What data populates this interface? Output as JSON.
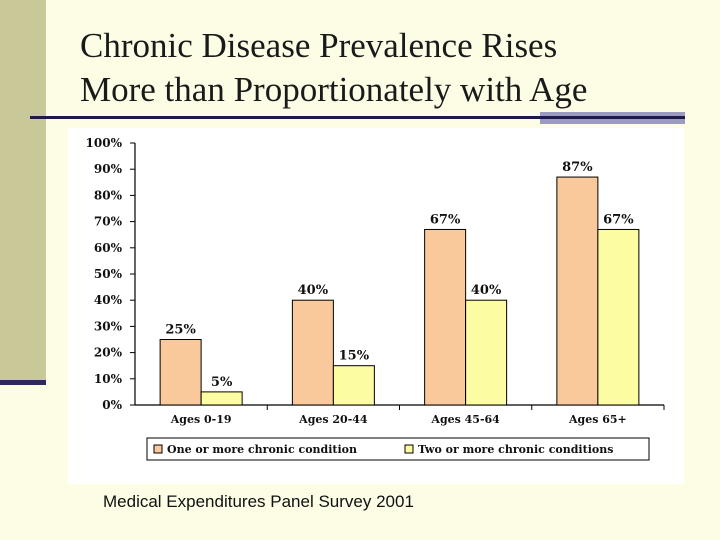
{
  "slide": {
    "title_line1": "Chronic Disease Prevalence Rises",
    "title_line2": "More than Proportionately with Age",
    "source": "Medical Expenditures Panel Survey 2001"
  },
  "chart_data": {
    "type": "bar",
    "categories": [
      "Ages 0-19",
      "Ages 20-44",
      "Ages 45-64",
      "Ages 65+"
    ],
    "series": [
      {
        "name": "One or more chronic condition",
        "values": [
          25,
          40,
          67,
          87
        ],
        "color": "#f9c99b",
        "labels": [
          "25%",
          "40%",
          "67%",
          "87%"
        ]
      },
      {
        "name": "Two or more chronic conditions",
        "values": [
          5,
          15,
          40,
          67
        ],
        "color": "#fcfca2",
        "labels": [
          "5%",
          "15%",
          "40%",
          "67%"
        ]
      }
    ],
    "ylim": [
      0,
      100
    ],
    "yticks": [
      0,
      10,
      20,
      30,
      40,
      50,
      60,
      70,
      80,
      90,
      100
    ],
    "ytick_labels": [
      "0%",
      "10%",
      "20%",
      "30%",
      "40%",
      "50%",
      "60%",
      "70%",
      "80%",
      "90%",
      "100%"
    ],
    "legend_position": "bottom",
    "grid": false
  }
}
